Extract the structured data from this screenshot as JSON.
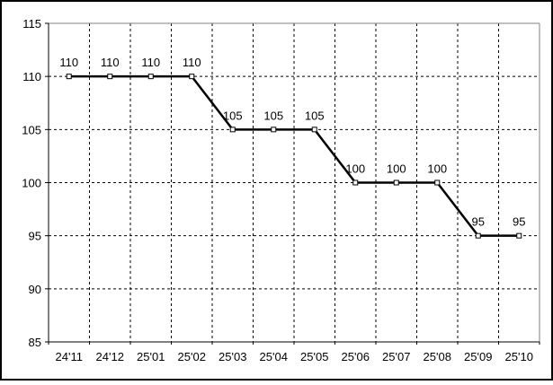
{
  "chart_data": {
    "type": "line",
    "title": "",
    "xlabel": "",
    "ylabel": "",
    "categories": [
      "24'11",
      "24'12",
      "25'01",
      "25'02",
      "25'03",
      "25'04",
      "25'05",
      "25'06",
      "25'07",
      "25'08",
      "25'09",
      "25'10"
    ],
    "values": [
      110,
      110,
      110,
      110,
      105,
      105,
      105,
      100,
      100,
      100,
      95,
      95
    ],
    "data_labels": [
      "110",
      "110",
      "110",
      "110",
      "105",
      "105",
      "105",
      "100",
      "100",
      "100",
      "95",
      "95"
    ],
    "ylim": [
      85,
      115
    ],
    "ytick_step": 5,
    "ytick_labels": [
      "85",
      "90",
      "95",
      "100",
      "105",
      "110",
      "115"
    ],
    "grid": "dashed",
    "legend": "none",
    "marker": "open-square",
    "colors": {
      "line": "#000000",
      "marker_fill": "#ffffff",
      "marker_stroke": "#000000",
      "grid": "#000000",
      "axis": "#000000",
      "plot_border": "#808080",
      "outer_border": "#000000",
      "background": "#ffffff",
      "text": "#000000"
    }
  }
}
